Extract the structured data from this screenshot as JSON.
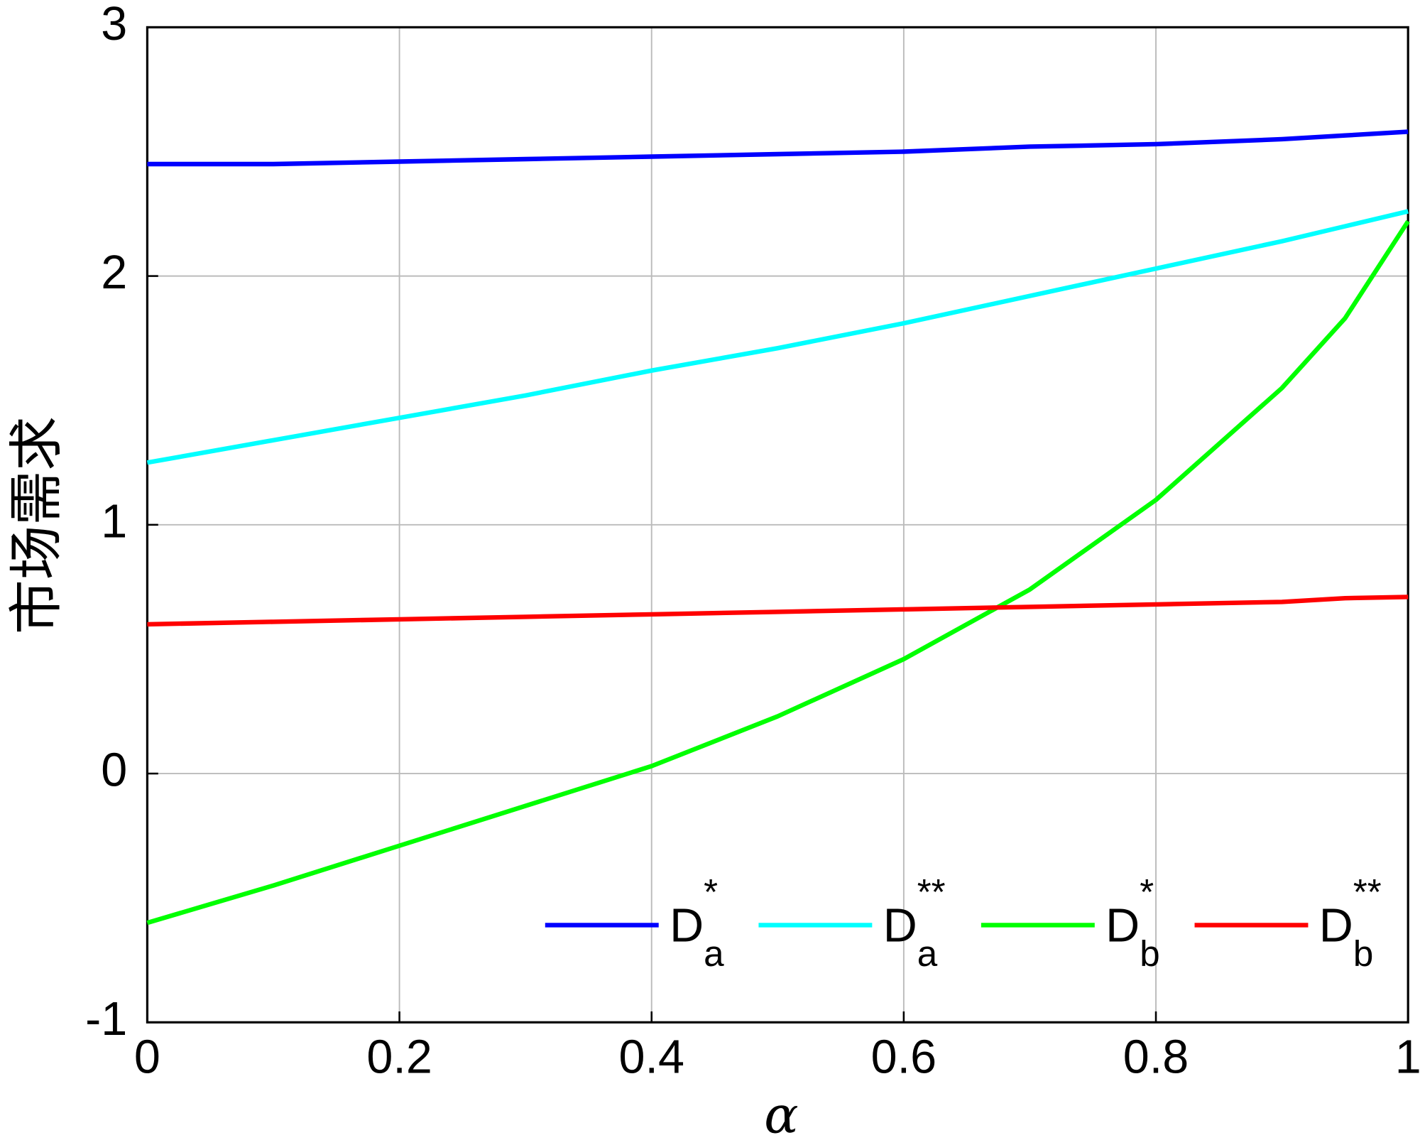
{
  "chart_data": {
    "type": "line",
    "x": [
      0,
      0.1,
      0.2,
      0.3,
      0.4,
      0.5,
      0.6,
      0.7,
      0.8,
      0.9,
      0.95,
      1
    ],
    "series": [
      {
        "name": "D",
        "subscript": "a",
        "superscript": "*",
        "color": "#0000ff",
        "values": [
          2.45,
          2.45,
          2.46,
          2.47,
          2.48,
          2.49,
          2.5,
          2.52,
          2.53,
          2.55,
          2.565,
          2.58
        ]
      },
      {
        "name": "D",
        "subscript": "a",
        "superscript": "**",
        "color": "#00ffff",
        "values": [
          1.25,
          1.34,
          1.43,
          1.52,
          1.62,
          1.71,
          1.81,
          1.92,
          2.03,
          2.14,
          2.2,
          2.26
        ]
      },
      {
        "name": "D",
        "subscript": "b",
        "superscript": "*",
        "color": "#00ff00",
        "values": [
          -0.6,
          -0.45,
          -0.29,
          -0.13,
          0.03,
          0.23,
          0.46,
          0.74,
          1.1,
          1.55,
          1.83,
          2.22
        ]
      },
      {
        "name": "D",
        "subscript": "b",
        "superscript": "**",
        "color": "#ff0000",
        "values": [
          0.6,
          0.61,
          0.62,
          0.63,
          0.64,
          0.65,
          0.66,
          0.67,
          0.68,
          0.69,
          0.705,
          0.71
        ]
      }
    ],
    "x_label": "α",
    "y_label": "市场需求",
    "xlim": [
      0,
      1
    ],
    "xticks": [
      0,
      0.2,
      0.4,
      0.6,
      0.8,
      1
    ],
    "ylim": [
      -1,
      3
    ],
    "yticks": [
      -1,
      0,
      1,
      2,
      3
    ],
    "grid": true,
    "legend": "lower right"
  }
}
